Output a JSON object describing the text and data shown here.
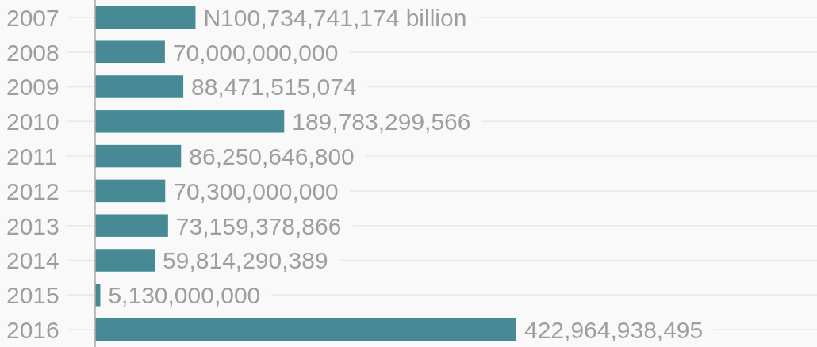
{
  "chart_data": {
    "type": "bar",
    "orientation": "horizontal",
    "categories": [
      "2007",
      "2008",
      "2009",
      "2010",
      "2011",
      "2012",
      "2013",
      "2014",
      "2015",
      "2016"
    ],
    "values": [
      100734741174,
      70000000000,
      88471515074,
      189783299566,
      86250646800,
      70300000000,
      73159378866,
      59814290389,
      5130000000,
      422964938495
    ],
    "value_labels": [
      "N100,734,741,174 billion",
      "70,000,000,000",
      "88,471,515,074",
      "189,783,299,566",
      "86,250,646,800",
      "70,300,000,000",
      "73,159,378,866",
      "59,814,290,389",
      "5,130,000,000",
      "422,964,938,495"
    ],
    "color": "#478a96",
    "grid": "y"
  }
}
